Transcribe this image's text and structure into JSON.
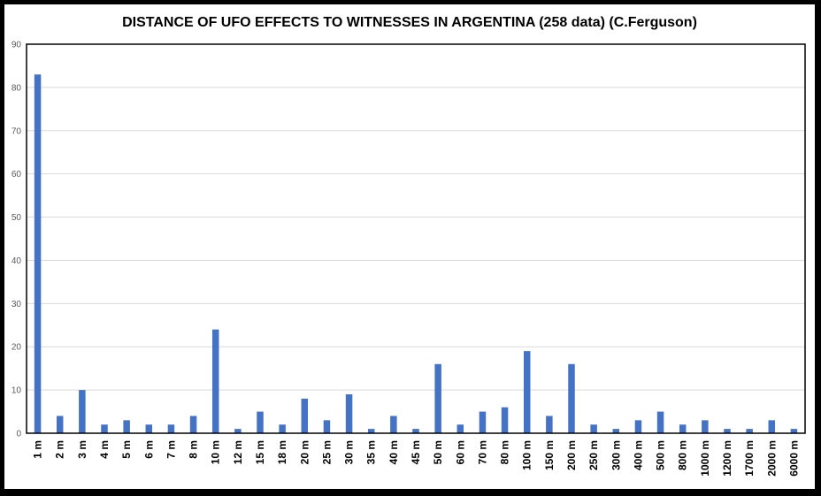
{
  "colors": {
    "bar": "#4472C4",
    "grid": "#D9D9D9",
    "frame": "#000000",
    "axis": "#000000"
  },
  "chart_data": {
    "type": "bar",
    "title": "DISTANCE OF UFO EFFECTS TO WITNESSES IN ARGENTINA (258 data) (C.Ferguson)",
    "xlabel": "",
    "ylabel": "",
    "ylim": [
      0,
      90
    ],
    "yticks": [
      0,
      10,
      20,
      30,
      40,
      50,
      60,
      70,
      80,
      90
    ],
    "grid": true,
    "legend": "none",
    "categories": [
      "1 m",
      "2 m",
      "3 m",
      "4 m",
      "5 m",
      "6 m",
      "7 m",
      "8 m",
      "10 m",
      "12 m",
      "15 m",
      "18 m",
      "20 m",
      "25 m",
      "30 m",
      "35 m",
      "40 m",
      "45 m",
      "50 m",
      "60 m",
      "70 m",
      "80 m",
      "100 m",
      "150 m",
      "200 m",
      "250 m",
      "300 m",
      "400 m",
      "500 m",
      "800 m",
      "1000 m",
      "1200 m",
      "1700 m",
      "2000 m",
      "6000 m"
    ],
    "values": [
      83,
      4,
      10,
      2,
      3,
      2,
      2,
      4,
      24,
      1,
      5,
      2,
      8,
      3,
      9,
      1,
      4,
      1,
      16,
      2,
      5,
      6,
      19,
      4,
      16,
      2,
      1,
      3,
      5,
      2,
      3,
      1,
      1,
      3,
      1
    ]
  }
}
